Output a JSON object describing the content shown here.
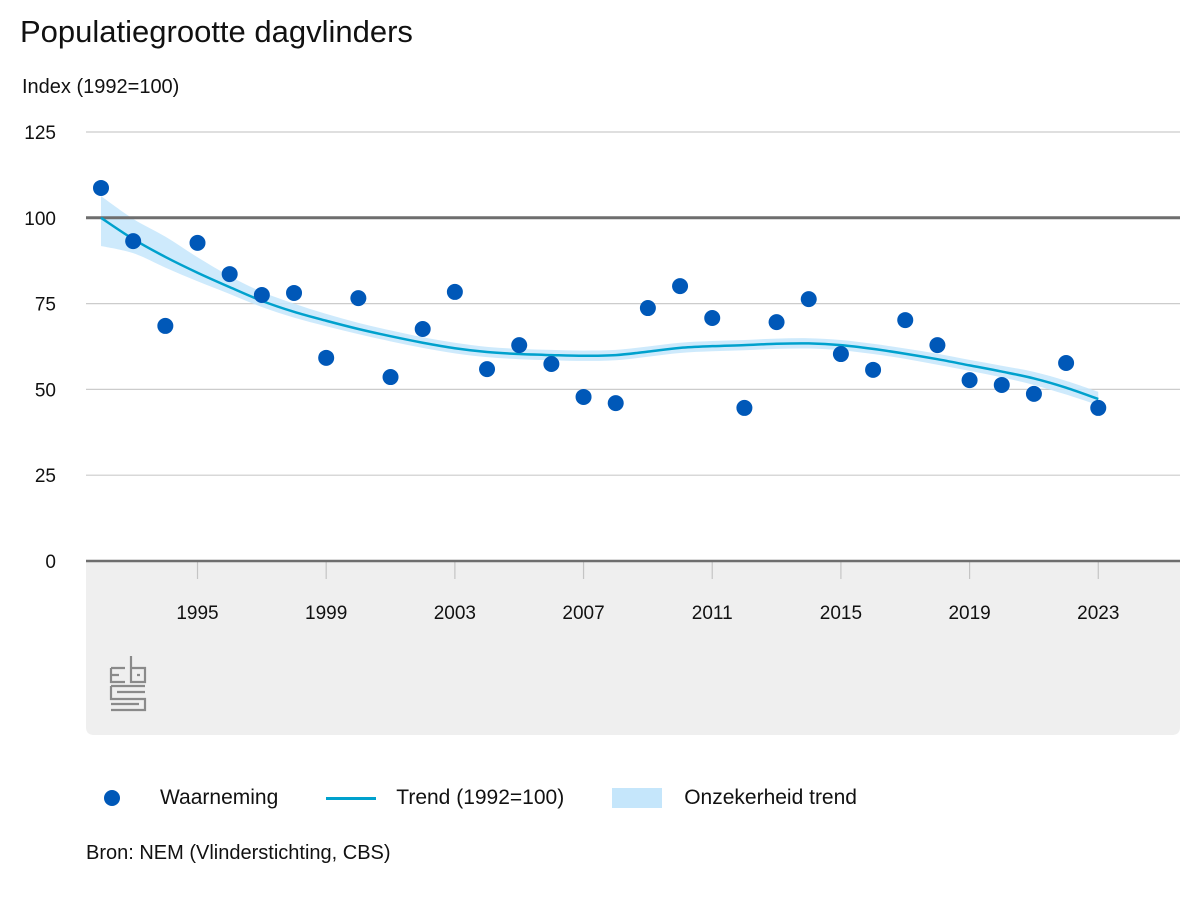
{
  "title": "Populatiegrootte dagvlinders",
  "y_axis_label": "Index (1992=100)",
  "legend": {
    "observation": "Waarneming",
    "trend": "Trend (1992=100)",
    "uncertainty": "Onzekerheid trend"
  },
  "source": "Bron: NEM (Vlinderstichting, CBS)",
  "logo": "cbs-logo",
  "colors": {
    "observation": "#0058b8",
    "trend": "#00a1cd",
    "band": "#c5e6fb",
    "reference_line": "#6e6e6e",
    "grid": "#cccccc",
    "axis_panel": "#efefef"
  },
  "chart_data": {
    "type": "scatter",
    "title": "Populatiegrootte dagvlinders",
    "xlabel": "",
    "ylabel": "Index (1992=100)",
    "xlim": [
      1992,
      2023
    ],
    "ylim": [
      0,
      125
    ],
    "yticks": [
      0,
      25,
      50,
      75,
      100,
      125
    ],
    "xticks": [
      1995,
      1999,
      2003,
      2007,
      2011,
      2015,
      2019,
      2023
    ],
    "grid": true,
    "reference_line": 100,
    "legend_position": "bottom",
    "x": [
      1992,
      1993,
      1994,
      1995,
      1996,
      1997,
      1998,
      1999,
      2000,
      2001,
      2002,
      2003,
      2004,
      2005,
      2006,
      2007,
      2008,
      2009,
      2010,
      2011,
      2012,
      2013,
      2014,
      2015,
      2016,
      2017,
      2018,
      2019,
      2020,
      2021,
      2022,
      2023
    ],
    "series": [
      {
        "name": "Waarneming",
        "type": "scatter",
        "values": [
          108.7,
          93.2,
          68.5,
          92.7,
          83.6,
          77.5,
          78.1,
          59.2,
          76.6,
          53.6,
          67.6,
          78.4,
          55.9,
          62.9,
          57.4,
          47.8,
          46.0,
          73.7,
          80.1,
          70.8,
          44.6,
          69.6,
          76.3,
          60.3,
          55.7,
          70.2,
          62.9,
          52.7,
          51.3,
          48.7,
          57.7,
          44.6
        ]
      },
      {
        "name": "Trend (1992=100)",
        "type": "line",
        "values": [
          100,
          93.8,
          88.6,
          84.0,
          79.8,
          75.8,
          72.6,
          70.0,
          67.6,
          65.5,
          63.6,
          62.0,
          60.9,
          60.3,
          60.0,
          59.8,
          60.0,
          61.0,
          62.1,
          62.6,
          62.9,
          63.3,
          63.4,
          62.9,
          61.8,
          60.4,
          58.8,
          57.0,
          55.2,
          53.2,
          50.5,
          47.2
        ]
      },
      {
        "name": "Onzekerheid trend",
        "type": "area-band",
        "lower": [
          91.8,
          89.7,
          85.5,
          81.5,
          77.8,
          74.0,
          70.9,
          68.4,
          66.1,
          64.0,
          62.1,
          60.5,
          59.4,
          58.8,
          58.5,
          58.3,
          58.5,
          59.5,
          60.6,
          61.1,
          61.4,
          61.8,
          61.9,
          61.4,
          60.3,
          58.9,
          57.2,
          55.4,
          53.5,
          51.3,
          48.5,
          45.4
        ],
        "upper": [
          106.3,
          99.7,
          94.5,
          88.5,
          83.0,
          78.4,
          75.0,
          72.0,
          69.4,
          67.2,
          65.2,
          63.6,
          62.4,
          61.8,
          61.5,
          61.3,
          61.5,
          62.5,
          63.6,
          64.1,
          64.4,
          64.8,
          64.9,
          64.4,
          63.3,
          61.9,
          60.4,
          58.6,
          56.9,
          55.1,
          52.5,
          49.3
        ]
      }
    ]
  }
}
